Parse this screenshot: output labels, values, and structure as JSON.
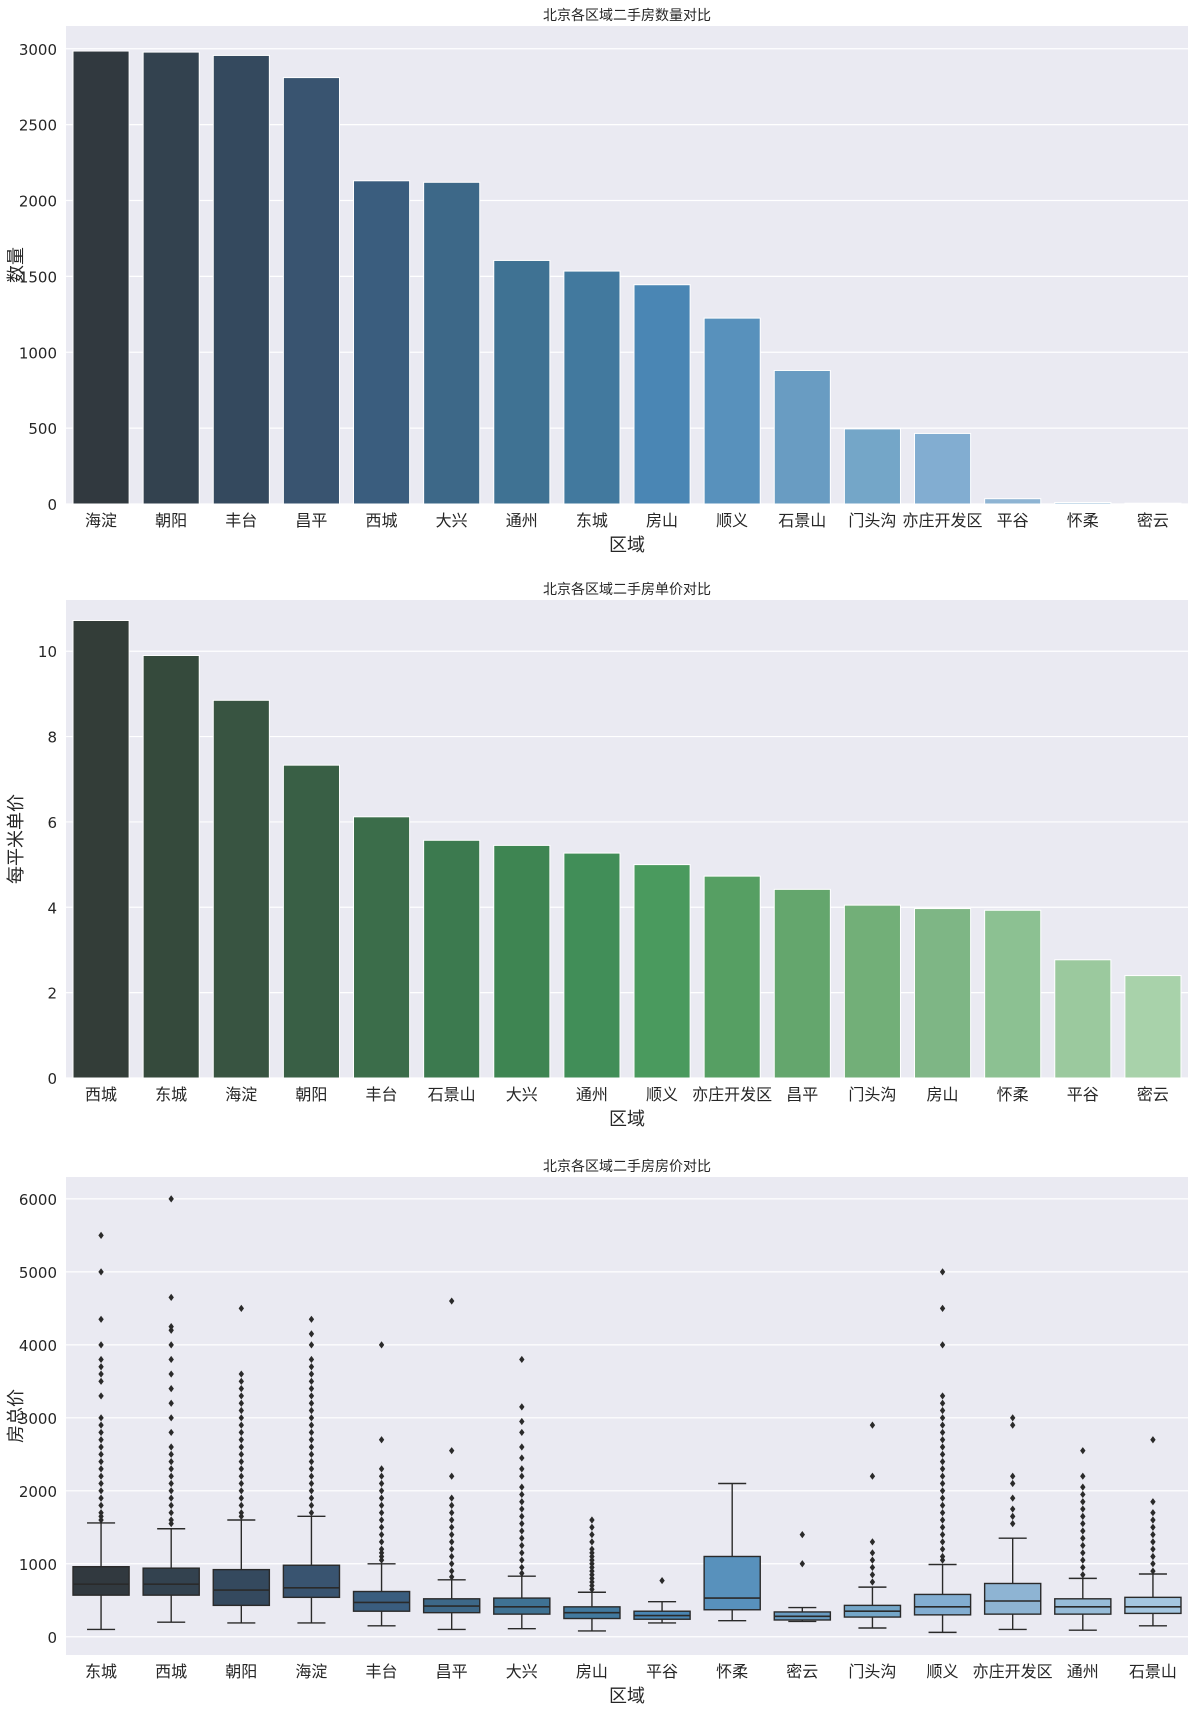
{
  "chart_data": [
    {
      "type": "bar",
      "title": "北京各区域二手房数量对比",
      "xlabel": "区域",
      "ylabel": "数量",
      "ylim": [
        0,
        3150
      ],
      "yticks": [
        0,
        500,
        1000,
        1500,
        2000,
        2500,
        3000
      ],
      "categories": [
        "海淀",
        "朝阳",
        "丰台",
        "昌平",
        "西城",
        "大兴",
        "通州",
        "东城",
        "房山",
        "顺义",
        "石景山",
        "门头沟",
        "亦庄开发区",
        "平谷",
        "怀柔",
        "密云"
      ],
      "values": [
        2985,
        2978,
        2956,
        2810,
        2130,
        2120,
        1605,
        1535,
        1445,
        1225,
        880,
        495,
        465,
        35,
        10,
        5
      ],
      "colors": [
        "#31393f",
        "#33424f",
        "#34495e",
        "#395470",
        "#3a5d7e",
        "#3d6888",
        "#3f7293",
        "#42799e",
        "#4a86b4",
        "#5891bc",
        "#699cc2",
        "#74a6c8",
        "#82add1",
        "#8eb4d3",
        "#97bcd8",
        "#a4c6e0"
      ],
      "grid": true
    },
    {
      "type": "bar",
      "title": "北京各区域二手房单价对比",
      "xlabel": "区域",
      "ylabel": "每平米单价",
      "ylim": [
        0,
        11.2
      ],
      "yticks": [
        0,
        2,
        4,
        6,
        8,
        10
      ],
      "categories": [
        "西城",
        "东城",
        "海淀",
        "朝阳",
        "丰台",
        "石景山",
        "大兴",
        "通州",
        "顺义",
        "亦庄开发区",
        "昌平",
        "门头沟",
        "房山",
        "怀柔",
        "平谷",
        "密云"
      ],
      "values": [
        10.72,
        9.9,
        8.85,
        7.33,
        6.12,
        5.57,
        5.45,
        5.27,
        5.0,
        4.73,
        4.42,
        4.05,
        3.97,
        3.93,
        2.77,
        2.4
      ],
      "colors": [
        "#333d38",
        "#354a3c",
        "#385441",
        "#395f45",
        "#3b6d4a",
        "#3c7a4f",
        "#3e8552",
        "#418e58",
        "#4a9a5e",
        "#569f63",
        "#64a66d",
        "#72af78",
        "#7eb685",
        "#8cc192",
        "#9bc99e",
        "#a8d2aa"
      ],
      "grid": true
    },
    {
      "type": "box",
      "title": "北京各区域二手房房价对比",
      "xlabel": "区域",
      "ylabel": "房总价",
      "ylim": [
        -250,
        6300
      ],
      "yticks": [
        0,
        1000,
        2000,
        3000,
        4000,
        5000,
        6000
      ],
      "categories": [
        "东城",
        "西城",
        "朝阳",
        "海淀",
        "丰台",
        "昌平",
        "大兴",
        "房山",
        "平谷",
        "怀柔",
        "密云",
        "门头沟",
        "顺义",
        "亦庄开发区",
        "通州",
        "石景山"
      ],
      "boxes": [
        {
          "whisker_low": 100,
          "q1": 570,
          "median": 720,
          "q3": 960,
          "whisker_high": 1560,
          "outliers": [
            1600,
            1650,
            1700,
            1800,
            1900,
            2000,
            2100,
            2200,
            2300,
            2400,
            2500,
            2600,
            2700,
            2800,
            2900,
            3000,
            3300,
            3500,
            3600,
            3700,
            3800,
            4000,
            4350,
            5000,
            5500
          ]
        },
        {
          "whisker_low": 200,
          "q1": 570,
          "median": 720,
          "q3": 940,
          "whisker_high": 1480,
          "outliers": [
            1550,
            1600,
            1700,
            1800,
            1900,
            2000,
            2100,
            2200,
            2300,
            2400,
            2500,
            2600,
            2800,
            3000,
            3200,
            3400,
            3600,
            3800,
            4000,
            4200,
            4250,
            4650,
            6000
          ]
        },
        {
          "whisker_low": 190,
          "q1": 430,
          "median": 640,
          "q3": 920,
          "whisker_high": 1600,
          "outliers": [
            1650,
            1700,
            1800,
            1900,
            2000,
            2100,
            2200,
            2300,
            2400,
            2500,
            2600,
            2700,
            2800,
            2900,
            3000,
            3100,
            3200,
            3300,
            3400,
            3500,
            3600,
            4500
          ]
        },
        {
          "whisker_low": 190,
          "q1": 540,
          "median": 670,
          "q3": 980,
          "whisker_high": 1650,
          "outliers": [
            1700,
            1800,
            1900,
            2000,
            2100,
            2200,
            2300,
            2400,
            2500,
            2600,
            2700,
            2800,
            2900,
            3000,
            3100,
            3200,
            3300,
            3400,
            3500,
            3600,
            3700,
            3800,
            4000,
            4150,
            4350
          ]
        },
        {
          "whisker_low": 150,
          "q1": 350,
          "median": 470,
          "q3": 620,
          "whisker_high": 1000,
          "outliers": [
            1050,
            1100,
            1150,
            1200,
            1300,
            1400,
            1500,
            1600,
            1700,
            1800,
            1900,
            2000,
            2100,
            2200,
            2300,
            2700,
            4000
          ]
        },
        {
          "whisker_low": 100,
          "q1": 330,
          "median": 420,
          "q3": 520,
          "whisker_high": 780,
          "outliers": [
            820,
            900,
            1000,
            1100,
            1200,
            1300,
            1400,
            1500,
            1600,
            1700,
            1800,
            1900,
            2200,
            2550,
            4600
          ]
        },
        {
          "whisker_low": 110,
          "q1": 310,
          "median": 410,
          "q3": 530,
          "whisker_high": 830,
          "outliers": [
            870,
            950,
            1050,
            1150,
            1250,
            1350,
            1450,
            1550,
            1650,
            1750,
            1850,
            1950,
            2050,
            2200,
            2300,
            2450,
            2600,
            2800,
            2950,
            3150,
            3800
          ]
        },
        {
          "whisker_low": 80,
          "q1": 250,
          "median": 330,
          "q3": 410,
          "whisker_high": 610,
          "outliers": [
            650,
            700,
            750,
            800,
            850,
            900,
            950,
            1000,
            1050,
            1100,
            1150,
            1200,
            1300,
            1400,
            1500,
            1600
          ]
        },
        {
          "whisker_low": 190,
          "q1": 240,
          "median": 290,
          "q3": 350,
          "whisker_high": 480,
          "outliers": [
            770
          ]
        },
        {
          "whisker_low": 220,
          "q1": 370,
          "median": 530,
          "q3": 1100,
          "whisker_high": 2100,
          "outliers": []
        },
        {
          "whisker_low": 210,
          "q1": 230,
          "median": 280,
          "q3": 340,
          "whisker_high": 400,
          "outliers": [
            1000,
            1400
          ]
        },
        {
          "whisker_low": 120,
          "q1": 270,
          "median": 350,
          "q3": 430,
          "whisker_high": 680,
          "outliers": [
            750,
            850,
            950,
            1050,
            1150,
            1300,
            2200,
            2900
          ]
        },
        {
          "whisker_low": 60,
          "q1": 300,
          "median": 410,
          "q3": 580,
          "whisker_high": 990,
          "outliers": [
            1050,
            1100,
            1200,
            1300,
            1400,
            1500,
            1600,
            1700,
            1800,
            1900,
            2000,
            2100,
            2200,
            2300,
            2400,
            2500,
            2600,
            2700,
            2800,
            2900,
            3000,
            3100,
            3200,
            3300,
            4000,
            4500,
            5000
          ]
        },
        {
          "whisker_low": 100,
          "q1": 310,
          "median": 490,
          "q3": 730,
          "whisker_high": 1350,
          "outliers": [
            1550,
            1650,
            1750,
            1900,
            2100,
            2200,
            2900,
            3000
          ]
        },
        {
          "whisker_low": 90,
          "q1": 310,
          "median": 410,
          "q3": 520,
          "whisker_high": 800,
          "outliers": [
            850,
            950,
            1050,
            1150,
            1250,
            1350,
            1450,
            1550,
            1650,
            1750,
            1850,
            1950,
            2050,
            2200,
            2550
          ]
        },
        {
          "whisker_low": 150,
          "q1": 320,
          "median": 410,
          "q3": 540,
          "whisker_high": 860,
          "outliers": [
            900,
            1000,
            1100,
            1200,
            1300,
            1400,
            1500,
            1600,
            1700,
            1850,
            2700
          ]
        }
      ],
      "colors": [
        "#31393f",
        "#33424f",
        "#34495e",
        "#395470",
        "#3a5d7e",
        "#3d6888",
        "#3f7293",
        "#42799e",
        "#4a86b4",
        "#5891bc",
        "#699cc2",
        "#74a6c8",
        "#82add1",
        "#8eb4d3",
        "#97bcd8",
        "#a4c6e0"
      ],
      "grid": true
    }
  ]
}
